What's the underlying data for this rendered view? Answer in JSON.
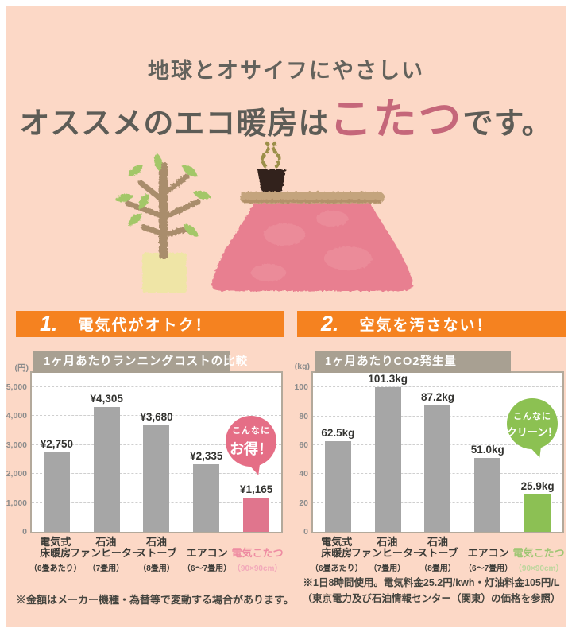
{
  "header": {
    "line1": "地球とオサイフにやさしい",
    "line2_prefix": "オススメのエコ暖房は",
    "line2_highlight": "こたつ",
    "line2_suffix": "です。"
  },
  "illustration": {
    "plant": "potted-plant",
    "kotatsu": "kotatsu-table-with-teacup"
  },
  "sections": [
    {
      "number": "1.",
      "label": "電気代がオトク！"
    },
    {
      "number": "2.",
      "label": "空気を汚さない！"
    }
  ],
  "chart_data": [
    {
      "type": "bar",
      "title": "1ヶ月あたりランニングコストの比較",
      "unit": "(円)",
      "ylim": [
        0,
        5480
      ],
      "yticks": [
        {
          "v": 0,
          "label": "0"
        },
        {
          "v": 1000,
          "label": "1,000"
        },
        {
          "v": 2000,
          "label": "2,000"
        },
        {
          "v": 3000,
          "label": "3,000"
        },
        {
          "v": 4000,
          "label": "4,000"
        },
        {
          "v": 5000,
          "label": "5,000"
        }
      ],
      "categories": [
        {
          "label": "電気式\n床暖房",
          "sub": "（6畳あたり）"
        },
        {
          "label": "石油\nファンヒーター",
          "sub": "（7畳用）"
        },
        {
          "label": "石油\nストーブ",
          "sub": "（8畳用）"
        },
        {
          "label": "エアコン",
          "sub": "（6～7畳用）"
        },
        {
          "label": "電気こたつ",
          "sub": "（90×90cm）"
        }
      ],
      "values": [
        2750,
        4305,
        3680,
        2335,
        1165
      ],
      "value_labels": [
        "¥2,750",
        "¥4,305",
        "¥3,680",
        "¥2,335",
        "¥1,165"
      ],
      "highlight_index": 4,
      "colors": {
        "bar": "#a6a6a6",
        "highlight": "#e0758d",
        "category_highlight": "#ee8ca2",
        "sub_highlight": "#f2a9ba"
      },
      "bubble": {
        "line1": "こんなに",
        "line2": "お得！",
        "color": "#e56e86",
        "line2_size": 18,
        "top": 54
      }
    },
    {
      "type": "bar",
      "title": "1ヶ月あたりCO2発生量",
      "unit": "(kg)",
      "ylim": [
        0,
        110
      ],
      "yticks": [
        {
          "v": 0,
          "label": "0"
        },
        {
          "v": 20,
          "label": "20"
        },
        {
          "v": 40,
          "label": "40"
        },
        {
          "v": 60,
          "label": "60"
        },
        {
          "v": 80,
          "label": "80"
        },
        {
          "v": 100,
          "label": "100"
        }
      ],
      "categories": [
        {
          "label": "電気式\n床暖房",
          "sub": "（6畳あたり）"
        },
        {
          "label": "石油\nファンヒーター",
          "sub": "（7畳用）"
        },
        {
          "label": "石油\nストーブ",
          "sub": "（8畳用）"
        },
        {
          "label": "エアコン",
          "sub": "（6～7畳用）"
        },
        {
          "label": "電気こたつ",
          "sub": "（90×90cm）"
        }
      ],
      "values": [
        62.5,
        101.3,
        87.2,
        51.0,
        25.9
      ],
      "value_labels": [
        "62.5kg",
        "101.3kg",
        "87.2kg",
        "51.0kg",
        "25.9kg"
      ],
      "highlight_index": 4,
      "colors": {
        "bar": "#a6a6a6",
        "highlight": "#8cc054",
        "category_highlight": "#9fc673",
        "sub_highlight": "#bcd69c"
      },
      "bubble": {
        "line1": "こんなに",
        "line2": "クリーン！",
        "color": "#8cc152",
        "line2_size": 13,
        "top": 32
      }
    }
  ],
  "footnotes": {
    "left": "※金額はメーカー機種・為替等で変動する場合があります。",
    "right_line1": "※1日8時間使用。電気料金25.2円/kwh・灯油料金105円/L",
    "right_line2": "（東京電力及び石油情報センター（関東）の価格を参照）"
  }
}
